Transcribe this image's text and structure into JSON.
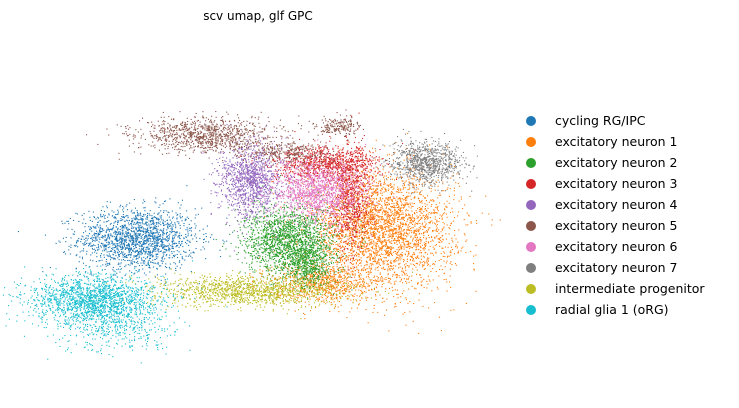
{
  "chart_data": {
    "type": "scatter",
    "title": "scv umap, glf GPC",
    "xlabel": "",
    "ylabel": "",
    "axes_visible": false,
    "grid": false,
    "legend_position": "right",
    "x_range": [
      -10,
      10
    ],
    "y_range": [
      -10,
      10
    ],
    "series": [
      {
        "name": "cycling RG/IPC",
        "color": "#1f77b4",
        "clusters": [
          {
            "cx": -5.5,
            "cy": -1.5,
            "sx": 1.3,
            "sy": 0.9,
            "n": 1700
          }
        ]
      },
      {
        "name": "excitatory neuron 1",
        "color": "#ff7f0e",
        "clusters": [
          {
            "cx": 5.2,
            "cy": -1.0,
            "sx": 1.6,
            "sy": 1.7,
            "n": 3200
          },
          {
            "cx": 2.6,
            "cy": -4.0,
            "sx": 1.1,
            "sy": 0.6,
            "n": 700
          }
        ]
      },
      {
        "name": "excitatory neuron 2",
        "color": "#2ca02c",
        "clusters": [
          {
            "cx": 1.2,
            "cy": -1.6,
            "sx": 1.0,
            "sy": 1.0,
            "n": 1800
          },
          {
            "cx": 2.0,
            "cy": -3.2,
            "sx": 0.5,
            "sy": 0.6,
            "n": 400
          }
        ]
      },
      {
        "name": "excitatory neuron 3",
        "color": "#d62728",
        "clusters": [
          {
            "cx": 2.8,
            "cy": 2.8,
            "sx": 1.2,
            "sy": 0.5,
            "n": 900
          },
          {
            "cx": 3.9,
            "cy": 0.9,
            "sx": 0.4,
            "sy": 1.5,
            "n": 700
          }
        ]
      },
      {
        "name": "excitatory neuron 4",
        "color": "#9467bd",
        "clusters": [
          {
            "cx": -0.5,
            "cy": 1.9,
            "sx": 0.7,
            "sy": 1.1,
            "n": 1200
          }
        ]
      },
      {
        "name": "excitatory neuron 5",
        "color": "#8c564b",
        "clusters": [
          {
            "cx": -2.5,
            "cy": 4.5,
            "sx": 1.5,
            "sy": 0.5,
            "n": 1000
          },
          {
            "cx": 1.2,
            "cy": 3.5,
            "sx": 0.9,
            "sy": 0.3,
            "n": 300
          },
          {
            "cx": 3.3,
            "cy": 5.0,
            "sx": 0.5,
            "sy": 0.3,
            "n": 200
          }
        ]
      },
      {
        "name": "excitatory neuron 6",
        "color": "#e377c2",
        "clusters": [
          {
            "cx": 2.4,
            "cy": 1.2,
            "sx": 1.0,
            "sy": 0.9,
            "n": 1300
          }
        ]
      },
      {
        "name": "excitatory neuron 7",
        "color": "#7f7f7f",
        "clusters": [
          {
            "cx": 7.2,
            "cy": 2.9,
            "sx": 0.8,
            "sy": 0.6,
            "n": 900
          }
        ]
      },
      {
        "name": "intermediate progenitor",
        "color": "#bcbd22",
        "clusters": [
          {
            "cx": -0.5,
            "cy": -4.5,
            "sx": 2.1,
            "sy": 0.45,
            "n": 1300
          }
        ]
      },
      {
        "name": "radial glia 1 (oRG)",
        "color": "#17becf",
        "clusters": [
          {
            "cx": -7.5,
            "cy": -5.0,
            "sx": 1.4,
            "sy": 0.7,
            "n": 1700
          },
          {
            "cx": -6.5,
            "cy": -6.7,
            "sx": 1.4,
            "sy": 0.7,
            "n": 400
          }
        ]
      }
    ]
  }
}
